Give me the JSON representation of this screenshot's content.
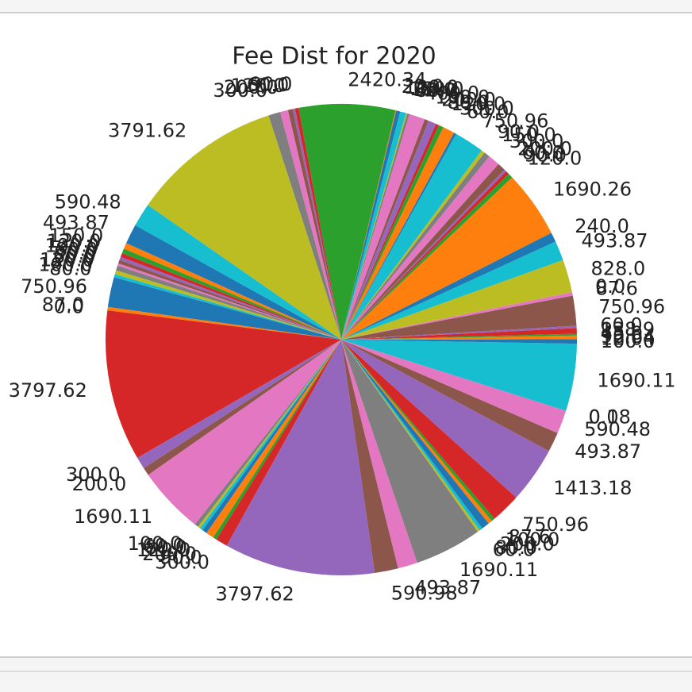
{
  "chart_data": {
    "type": "pie",
    "title": "Fee Dist for 2020",
    "colors": [
      "#1f77b4",
      "#ff7f0e",
      "#2ca02c",
      "#d62728",
      "#9467bd",
      "#8c564b",
      "#e377c2",
      "#7f7f7f",
      "#bcbd22",
      "#17becf"
    ],
    "values": [
      12.04,
      90.64,
      45.0,
      138.9,
      60.0,
      750.96,
      87.6,
      0.0,
      828.0,
      493.87,
      240.0,
      1690.26,
      120.0,
      90.0,
      60.0,
      200.0,
      300.0,
      150.0,
      90.0,
      750.96,
      60.0,
      300.0,
      120.0,
      80.0,
      200.0,
      100.0,
      400.0,
      60.0,
      30.0,
      150.0,
      100.0,
      20.0,
      2420.34,
      90.0,
      60.0,
      120.0,
      200.0,
      300.0,
      3791.62,
      590.48,
      493.87,
      150.0,
      120.0,
      100.0,
      80.0,
      90.0,
      60.0,
      120.0,
      100.0,
      80.0,
      750.96,
      87.0,
      0.0,
      3797.62,
      300.0,
      200.0,
      1690.11,
      100.0,
      60.0,
      80.0,
      120.0,
      200.0,
      90.0,
      300.0,
      3797.62,
      590.98,
      493.87,
      1690.11,
      60.0,
      80.0,
      200.0,
      100.0,
      87.6,
      750.96,
      1413.18,
      493.87,
      590.48,
      0.0,
      0.18,
      1690.11,
      100.0
    ],
    "value_labels": [
      "12.04",
      "90.64",
      "45.0",
      "138.9",
      "60.0",
      "750.96",
      "87.6",
      "0.0",
      "828.0",
      "493.87",
      "240.0",
      "1690.26",
      "120.0",
      "90.0",
      "60.0",
      "200.0",
      "300.0",
      "150.0",
      "90.0",
      "750.96",
      "60.0",
      "300.0",
      "120.0",
      "80.0",
      "200.0",
      "100.0",
      "400.0",
      "60.0",
      "30.0",
      "150.0",
      "100.0",
      "20.0",
      "2420.34",
      "90.0",
      "60.0",
      "120.0",
      "200.0",
      "300.0",
      "3791.62",
      "590.48",
      "493.87",
      "150.0",
      "120.0",
      "100.0",
      "80.0",
      "90.0",
      "60.0",
      "120.0",
      "100.0",
      "80.0",
      "750.96",
      "87.0",
      "0.0",
      "3797.62",
      "300.0",
      "200.0",
      "1690.11",
      "100.0",
      "60.0",
      "80.0",
      "120.0",
      "200.0",
      "90.0",
      "300.0",
      "3797.62",
      "590.98",
      "493.87",
      "1690.11",
      "60.0",
      "80.0",
      "200.0",
      "100.0",
      "87.6",
      "750.96",
      "1413.18",
      "493.87",
      "590.48",
      "0.0",
      "0.18",
      "1690.11",
      "100.0"
    ]
  }
}
